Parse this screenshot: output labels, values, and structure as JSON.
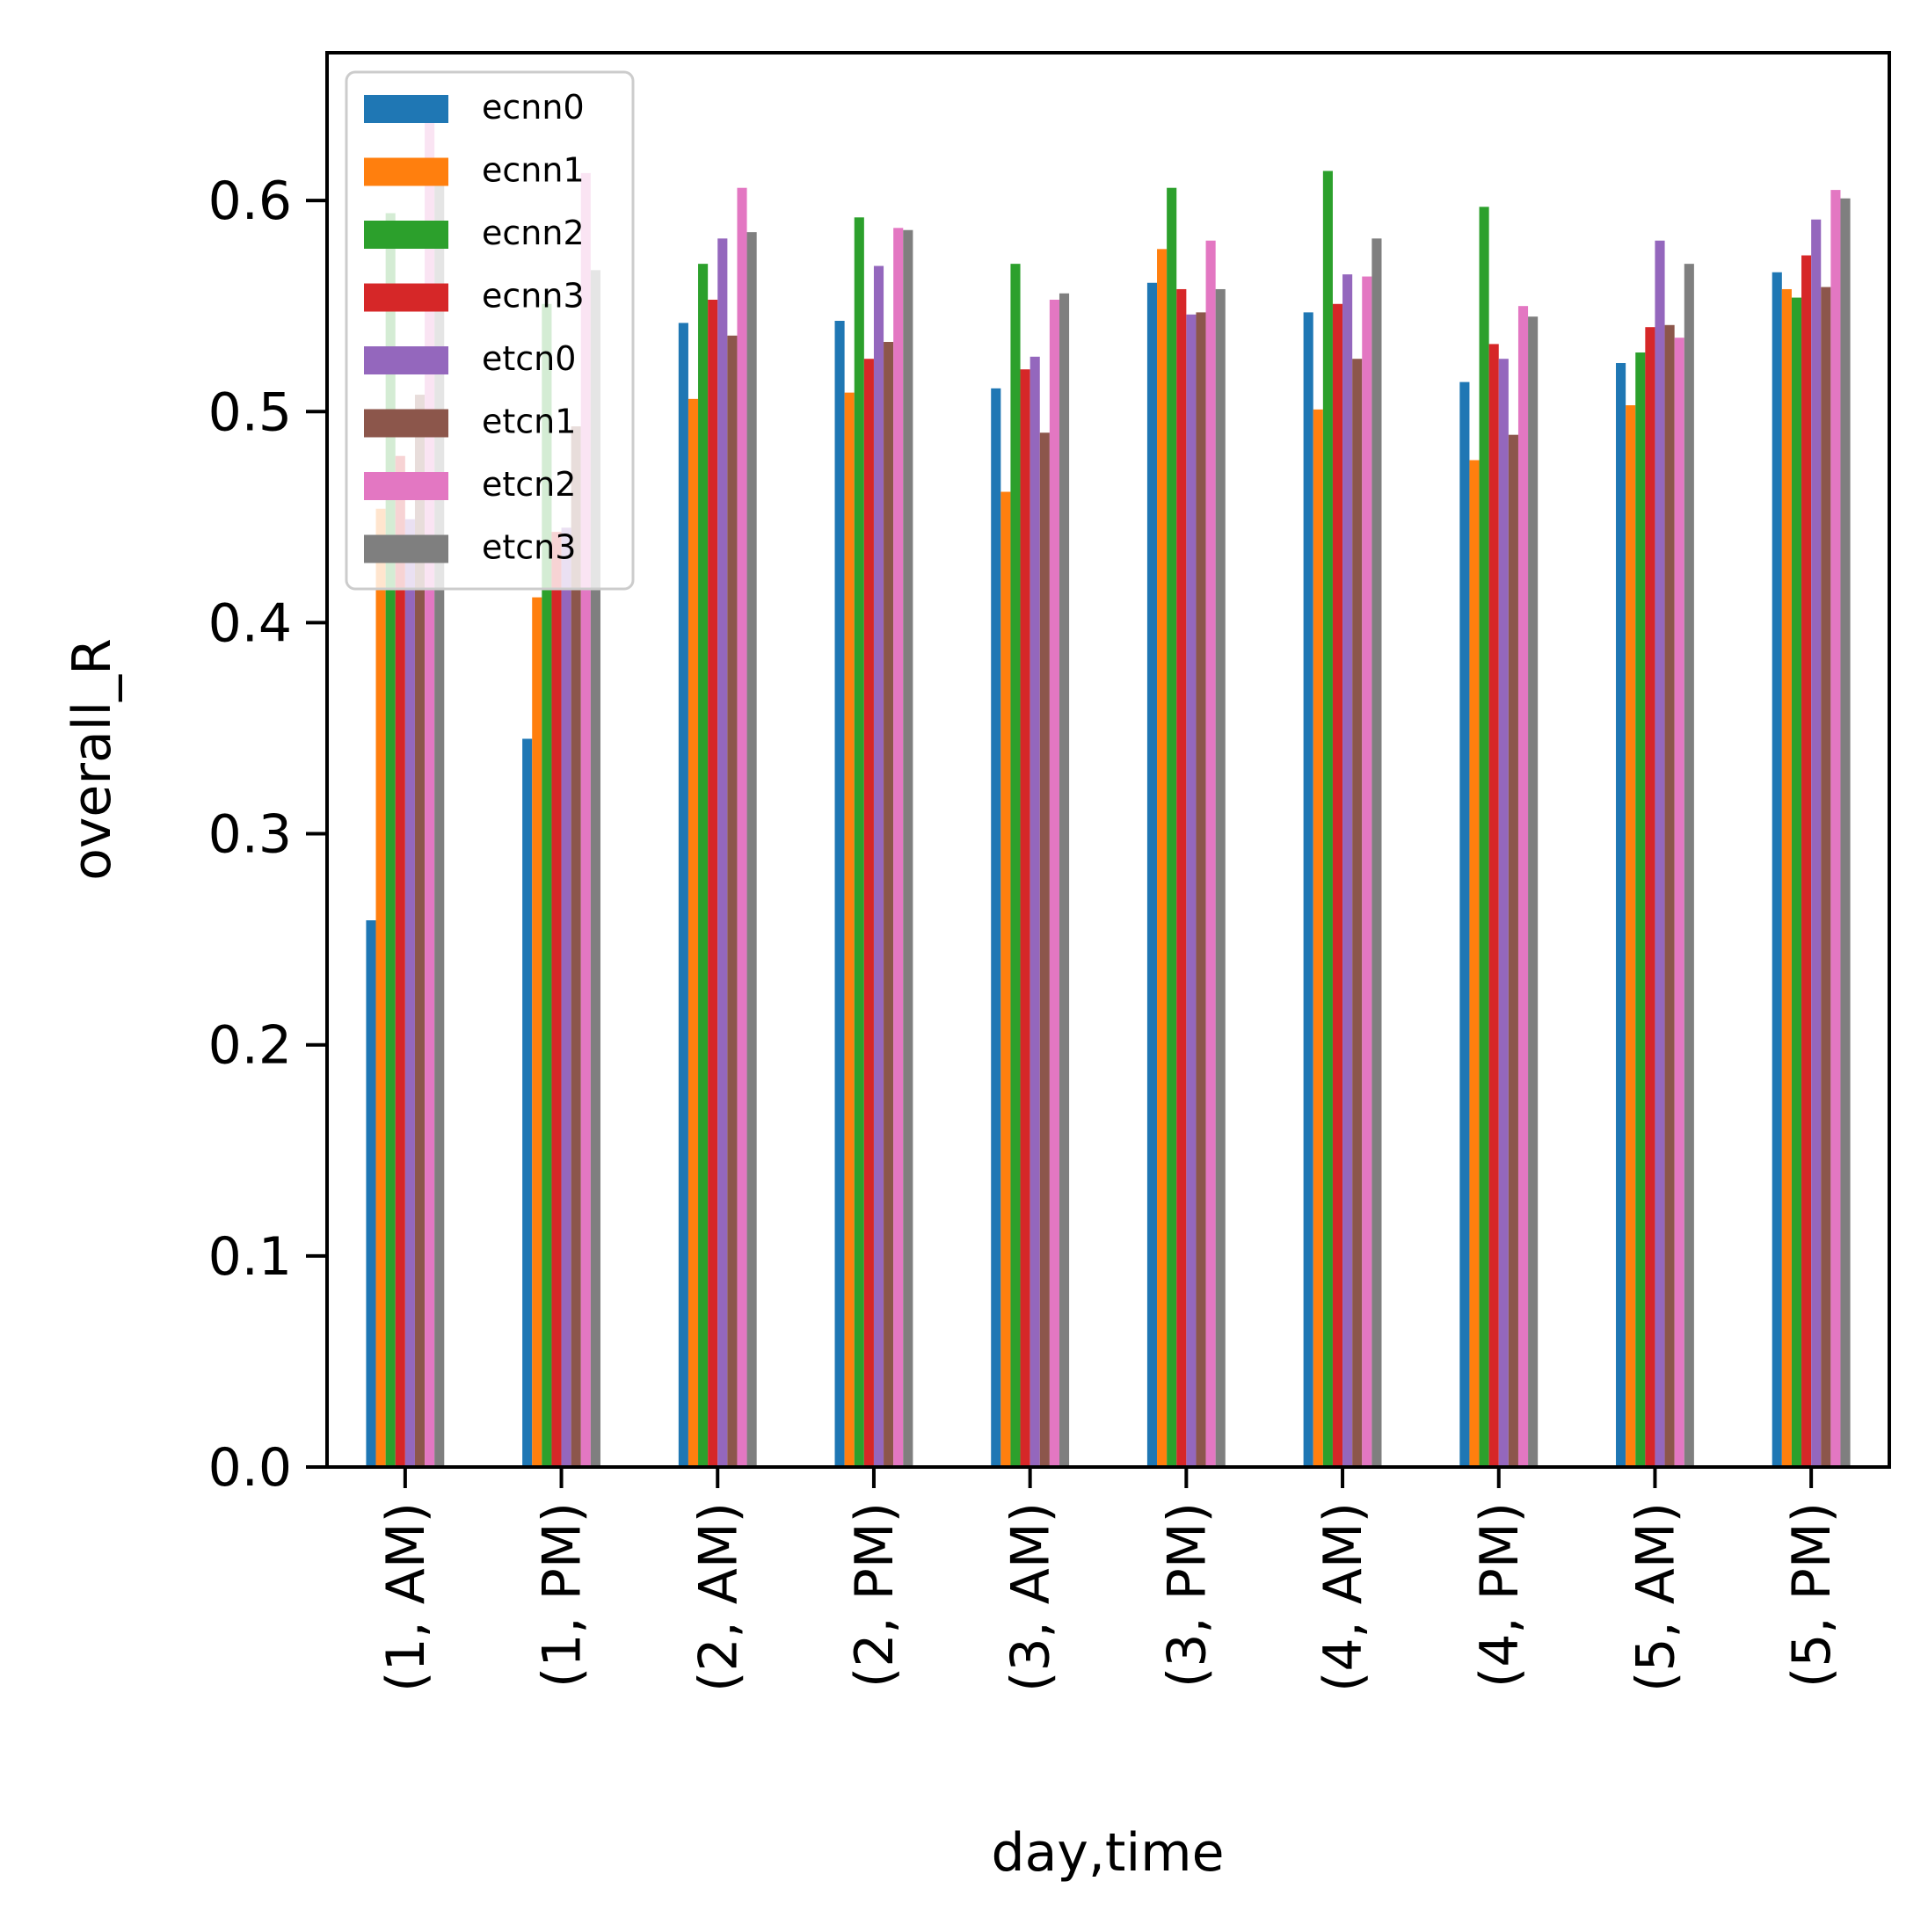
{
  "chart_data": {
    "type": "bar",
    "xlabel": "day,time",
    "ylabel": "overall_R",
    "ylim": [
      0,
      0.67
    ],
    "yticks": [
      "0.0",
      "0.1",
      "0.2",
      "0.3",
      "0.4",
      "0.5",
      "0.6"
    ],
    "categories": [
      "(1, AM)",
      "(1, PM)",
      "(2, AM)",
      "(2, PM)",
      "(3, AM)",
      "(3, PM)",
      "(4, AM)",
      "(4, PM)",
      "(5, AM)",
      "(5, PM)"
    ],
    "legend_position": "top-left",
    "grid": false,
    "series": [
      {
        "name": "ecnn0",
        "color": "#1f77b4",
        "values": [
          0.259,
          0.345,
          0.542,
          0.543,
          0.511,
          0.561,
          0.547,
          0.514,
          0.523,
          0.566
        ]
      },
      {
        "name": "ecnn1",
        "color": "#ff7f0e",
        "values": [
          0.454,
          0.412,
          0.506,
          0.509,
          0.462,
          0.577,
          0.501,
          0.477,
          0.503,
          0.558
        ]
      },
      {
        "name": "ecnn2",
        "color": "#2ca02c",
        "values": [
          0.594,
          0.551,
          0.57,
          0.592,
          0.57,
          0.606,
          0.614,
          0.597,
          0.528,
          0.554
        ]
      },
      {
        "name": "ecnn3",
        "color": "#d62728",
        "values": [
          0.479,
          0.443,
          0.553,
          0.525,
          0.52,
          0.558,
          0.551,
          0.532,
          0.54,
          0.574
        ]
      },
      {
        "name": "etcn0",
        "color": "#9467bd",
        "values": [
          0.449,
          0.445,
          0.582,
          0.569,
          0.526,
          0.546,
          0.565,
          0.525,
          0.581,
          0.591
        ]
      },
      {
        "name": "etcn1",
        "color": "#8c564b",
        "values": [
          0.508,
          0.493,
          0.536,
          0.533,
          0.49,
          0.547,
          0.525,
          0.489,
          0.541,
          0.559
        ]
      },
      {
        "name": "etcn2",
        "color": "#e377c2",
        "values": [
          0.638,
          0.613,
          0.606,
          0.587,
          0.553,
          0.581,
          0.564,
          0.55,
          0.535,
          0.605
        ]
      },
      {
        "name": "etcn3",
        "color": "#7f7f7f",
        "values": [
          0.607,
          0.567,
          0.585,
          0.586,
          0.556,
          0.558,
          0.582,
          0.545,
          0.57,
          0.601
        ]
      }
    ]
  }
}
